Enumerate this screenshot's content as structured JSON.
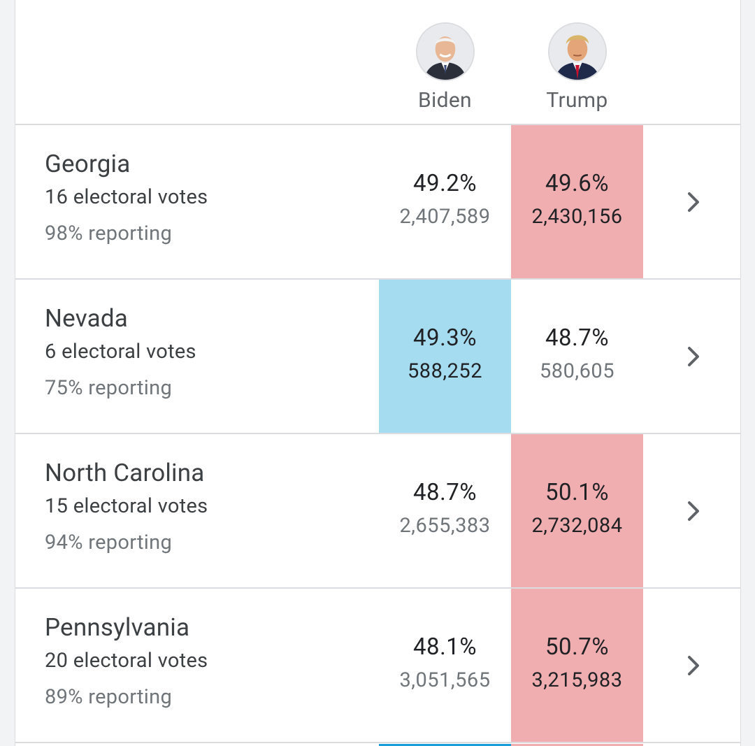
{
  "candidates": [
    {
      "name": "Biden",
      "party_color": "#a6dcf0"
    },
    {
      "name": "Trump",
      "party_color": "#f0aeb1"
    }
  ],
  "rows": [
    {
      "state": "Georgia",
      "electoral_votes": "16 electoral votes",
      "reporting": "98% reporting",
      "biden_pct": "49.2%",
      "biden_votes": "2,407,589",
      "trump_pct": "49.6%",
      "trump_votes": "2,430,156",
      "leader": "Trump"
    },
    {
      "state": "Nevada",
      "electoral_votes": "6 electoral votes",
      "reporting": "75% reporting",
      "biden_pct": "49.3%",
      "biden_votes": "588,252",
      "trump_pct": "48.7%",
      "trump_votes": "580,605",
      "leader": "Biden"
    },
    {
      "state": "North Carolina",
      "electoral_votes": "15 electoral votes",
      "reporting": "94% reporting",
      "biden_pct": "48.7%",
      "biden_votes": "2,655,383",
      "trump_pct": "50.1%",
      "trump_votes": "2,732,084",
      "leader": "Trump"
    },
    {
      "state": "Pennsylvania",
      "electoral_votes": "20 electoral votes",
      "reporting": "89% reporting",
      "biden_pct": "48.1%",
      "biden_votes": "3,051,565",
      "trump_pct": "50.7%",
      "trump_votes": "3,215,983",
      "leader": "Trump"
    }
  ],
  "icons": {
    "row_action": "chevron-right-icon",
    "candidate_photo": "avatar"
  }
}
